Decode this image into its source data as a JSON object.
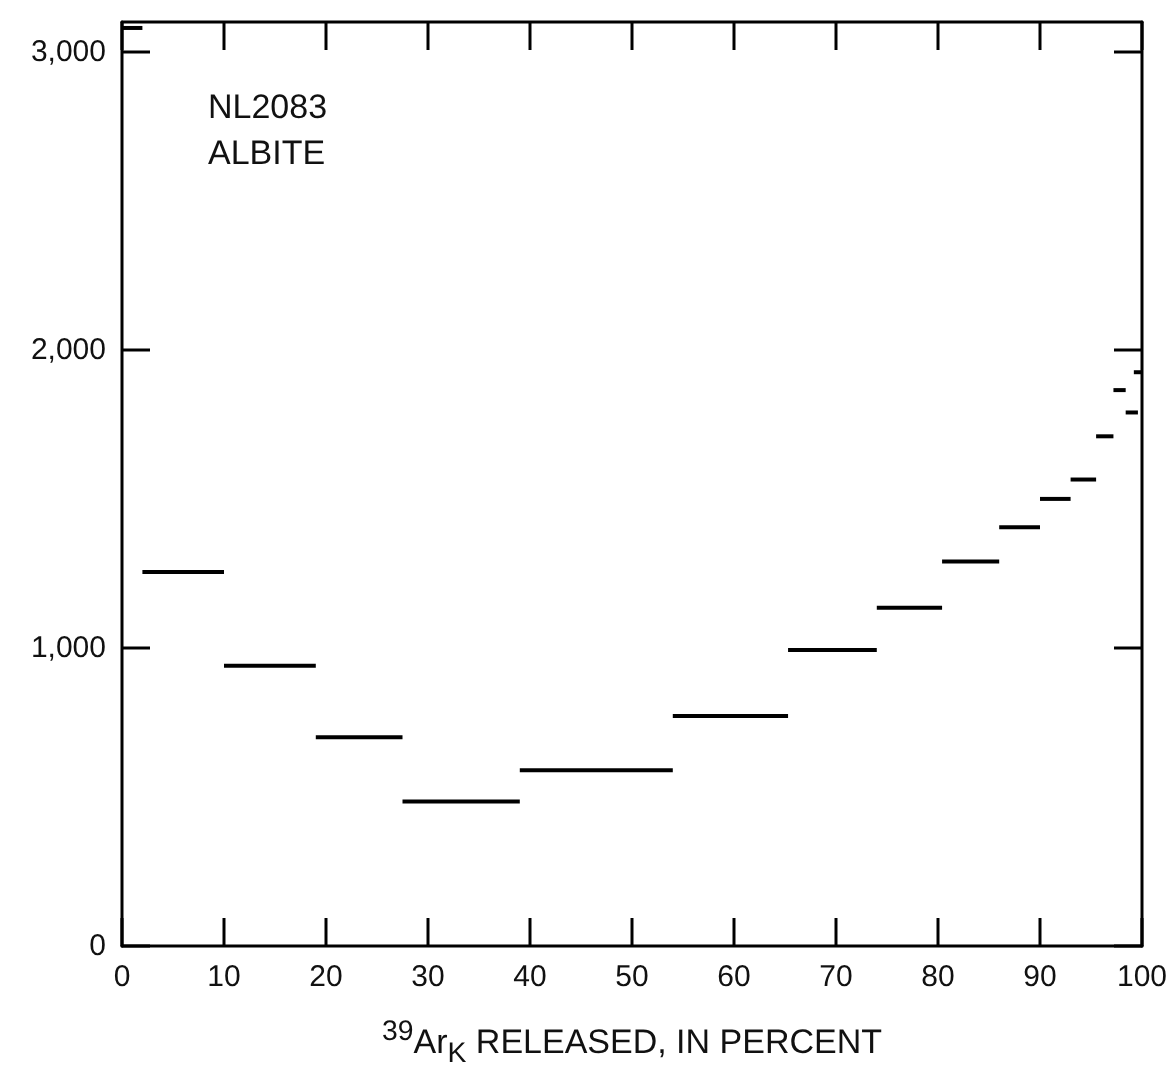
{
  "chart_data": {
    "type": "line",
    "xlabel": "$^{39}$Ar$_{K}$ RELEASED, IN PERCENT",
    "annotations": [
      "NL2083",
      "ALBITE"
    ],
    "xlim": [
      0,
      100
    ],
    "xticks": [
      0,
      10,
      20,
      30,
      40,
      50,
      60,
      70,
      80,
      90,
      100
    ],
    "ylim": [
      0,
      3100
    ],
    "yticks": [
      0,
      {
        "value": 1000,
        "label": "1,000"
      },
      {
        "value": 2000,
        "label": "2,000"
      },
      {
        "value": 3000,
        "label": "3,000"
      }
    ],
    "grid": false,
    "marker": "none",
    "line_style": "solid",
    "series": [
      {
        "color": "#000000",
        "x": [
          0,
          2
        ],
        "values": [
          3080,
          3080
        ]
      },
      {
        "color": "#000000",
        "x": [
          2,
          10
        ],
        "values": [
          1255,
          1255
        ]
      },
      {
        "color": "#000000",
        "x": [
          10,
          19
        ],
        "values": [
          940,
          940
        ]
      },
      {
        "color": "#000000",
        "x": [
          19,
          27.5
        ],
        "values": [
          700,
          700
        ]
      },
      {
        "color": "#000000",
        "x": [
          27.5,
          39
        ],
        "values": [
          485,
          485
        ]
      },
      {
        "color": "#000000",
        "x": [
          39,
          54
        ],
        "values": [
          590,
          590
        ]
      },
      {
        "color": "#000000",
        "x": [
          54,
          65.3
        ],
        "values": [
          772,
          772
        ]
      },
      {
        "color": "#000000",
        "x": [
          65.3,
          74
        ],
        "values": [
          993,
          993
        ]
      },
      {
        "color": "#000000",
        "x": [
          74,
          80.4
        ],
        "values": [
          1135,
          1135
        ]
      },
      {
        "color": "#000000",
        "x": [
          80.4,
          86
        ],
        "values": [
          1290,
          1290
        ]
      },
      {
        "color": "#000000",
        "x": [
          86,
          90
        ],
        "values": [
          1405,
          1405
        ]
      },
      {
        "color": "#000000",
        "x": [
          90,
          93
        ],
        "values": [
          1500,
          1500
        ]
      },
      {
        "color": "#000000",
        "x": [
          93,
          95.5
        ],
        "values": [
          1565,
          1565
        ]
      },
      {
        "color": "#000000",
        "x": [
          95.5,
          97.2
        ],
        "values": [
          1710,
          1710
        ]
      },
      {
        "color": "#000000",
        "x": [
          97.2,
          98.4
        ],
        "values": [
          1865,
          1865
        ]
      },
      {
        "color": "#000000",
        "x": [
          98.4,
          99.6
        ],
        "values": [
          1790,
          1790
        ]
      },
      {
        "color": "#000000",
        "x": [
          99.2,
          100
        ],
        "values": [
          1925,
          1925
        ]
      }
    ]
  }
}
